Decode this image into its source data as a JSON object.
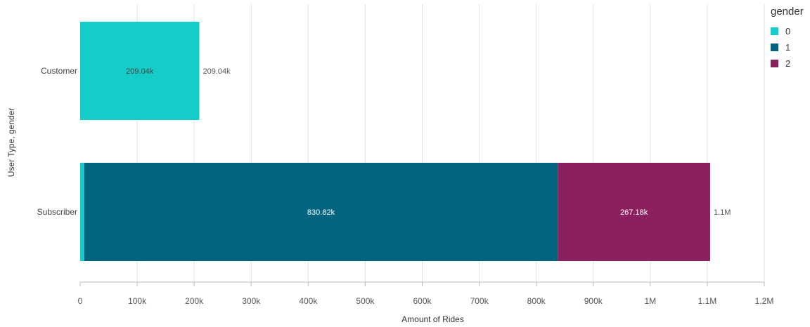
{
  "chart_data": {
    "type": "bar",
    "orientation": "horizontal",
    "stacked": true,
    "categories": [
      "Customer",
      "Subscriber"
    ],
    "series": [
      {
        "name": "0",
        "color": "#14cdc8",
        "values": [
          209040,
          7000
        ]
      },
      {
        "name": "1",
        "color": "#02647f",
        "values": [
          0,
          830820
        ]
      },
      {
        "name": "2",
        "color": "#8a205e",
        "values": [
          0,
          267180
        ]
      }
    ],
    "segment_labels": [
      {
        "category": "Customer",
        "series": "0",
        "text": "209.04k"
      },
      {
        "category": "Subscriber",
        "series": "1",
        "text": "830.82k"
      },
      {
        "category": "Subscriber",
        "series": "2",
        "text": "267.18k"
      }
    ],
    "total_labels": [
      "209.04k",
      "1.1M"
    ],
    "xlabel": "Amount of Rides",
    "ylabel": "User Type, gender",
    "xlim": [
      0,
      1200000
    ],
    "xticks": [
      {
        "value": 0,
        "label": "0"
      },
      {
        "value": 100000,
        "label": "100k"
      },
      {
        "value": 200000,
        "label": "200k"
      },
      {
        "value": 300000,
        "label": "300k"
      },
      {
        "value": 400000,
        "label": "400k"
      },
      {
        "value": 500000,
        "label": "500k"
      },
      {
        "value": 600000,
        "label": "600k"
      },
      {
        "value": 700000,
        "label": "700k"
      },
      {
        "value": 800000,
        "label": "800k"
      },
      {
        "value": 900000,
        "label": "900k"
      },
      {
        "value": 1000000,
        "label": "1M"
      },
      {
        "value": 1100000,
        "label": "1.1M"
      },
      {
        "value": 1200000,
        "label": "1.2M"
      }
    ],
    "grid": true,
    "legend": {
      "title": "gender",
      "placement": "right"
    }
  }
}
